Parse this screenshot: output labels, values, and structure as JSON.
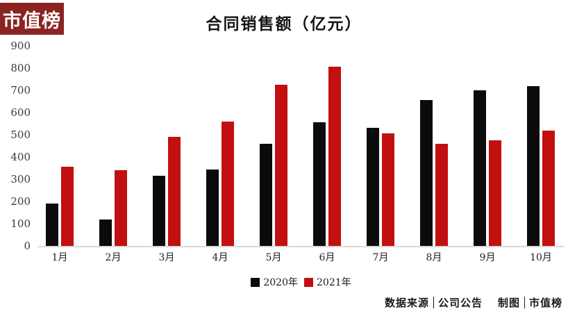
{
  "brand": {
    "logo_text": "市值榜"
  },
  "chart_data": {
    "type": "bar",
    "title": "合同销售额（亿元）",
    "categories": [
      "1月",
      "2月",
      "3月",
      "4月",
      "5月",
      "6月",
      "7月",
      "8月",
      "9月",
      "10月"
    ],
    "series": [
      {
        "name": "2020年",
        "color": "#0b0b0b",
        "values": [
          190,
          120,
          315,
          345,
          460,
          555,
          530,
          655,
          700,
          720
        ]
      },
      {
        "name": "2021年",
        "color": "#c21010",
        "values": [
          355,
          340,
          490,
          560,
          725,
          805,
          505,
          460,
          475,
          520
        ]
      }
    ],
    "xlabel": "",
    "ylabel": "",
    "ylim": [
      0,
      900
    ],
    "yticks": [
      0,
      100,
      200,
      300,
      400,
      500,
      600,
      700,
      800,
      900
    ],
    "grid": false,
    "legend_position": "bottom"
  },
  "footer": {
    "source_label": "数据来源",
    "source_value": "公司公告",
    "credit_label": "制图",
    "credit_value": "市值榜",
    "separator": "|"
  }
}
